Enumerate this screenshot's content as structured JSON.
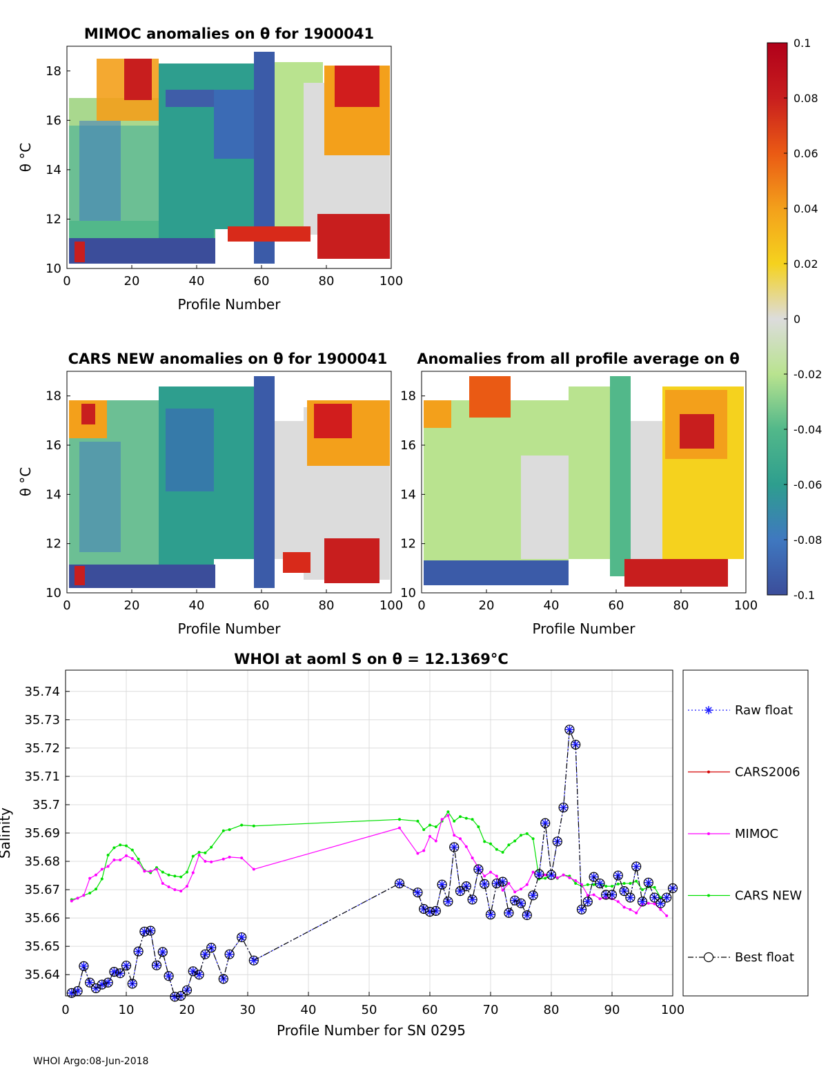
{
  "heatmaps": [
    {
      "id": "mimoc",
      "title": "MIMOC anomalies on θ  for 1900041",
      "xlabel": "Profile Number",
      "ylabel": "θ °C",
      "xlim": [
        0,
        100
      ],
      "ylim": [
        10,
        19
      ],
      "xticks": [
        0,
        20,
        40,
        60,
        80,
        100
      ],
      "yticks": [
        10,
        12,
        14,
        16,
        18
      ]
    },
    {
      "id": "cars",
      "title": "CARS NEW anomalies on θ for 1900041",
      "xlabel": "Profile Number",
      "ylabel": "θ °C",
      "xlim": [
        0,
        100
      ],
      "ylim": [
        10,
        19
      ],
      "xticks": [
        0,
        20,
        40,
        60,
        80,
        100
      ],
      "yticks": [
        10,
        12,
        14,
        16,
        18
      ]
    },
    {
      "id": "avg",
      "title": "Anomalies from all profile average on θ",
      "xlabel": "Profile Number",
      "ylabel": "",
      "xlim": [
        0,
        100
      ],
      "ylim": [
        10,
        19
      ],
      "xticks": [
        0,
        20,
        40,
        60,
        80,
        100
      ],
      "yticks": [
        10,
        12,
        14,
        16,
        18
      ]
    }
  ],
  "colorbar": {
    "ticks": [
      "0.1",
      "0.08",
      "0.06",
      "0.04",
      "0.02",
      "0",
      "-0.02",
      "-0.04",
      "-0.06",
      "-0.08",
      "-0.1"
    ],
    "range": [
      -0.1,
      0.1
    ],
    "colors": [
      "#3b4d9a",
      "#3f78c0",
      "#2e9e8e",
      "#52b88a",
      "#b9e38f",
      "#dcdcdc",
      "#f5d21e",
      "#f3a01b",
      "#ea5a14",
      "#c81e1e",
      "#b0001a"
    ]
  },
  "chart_data": {
    "type": "line",
    "title": "WHOI at aoml S on θ = 12.1369°C",
    "xlabel": "Profile Number for SN 0295",
    "ylabel": "Salinity",
    "xlim": [
      0,
      100
    ],
    "ylim": [
      35.6325,
      35.7475
    ],
    "xticks": [
      0,
      10,
      20,
      30,
      40,
      50,
      60,
      70,
      80,
      90,
      100
    ],
    "yticks": [
      35.64,
      35.65,
      35.66,
      35.67,
      35.68,
      35.69,
      35.7,
      35.71,
      35.72,
      35.73,
      35.74
    ],
    "ytick_labels": [
      "35.64",
      "35.65",
      "35.66",
      "35.67",
      "35.68",
      "35.69",
      "35.7",
      "35.71",
      "35.72",
      "35.73",
      "35.74"
    ],
    "series": [
      {
        "name": "Raw float",
        "color": "#1a1aff",
        "style": "dotted-star",
        "x": [
          1,
          2,
          3,
          4,
          5,
          6,
          7,
          8,
          9,
          10,
          11,
          12,
          13,
          14,
          15,
          16,
          17,
          18,
          19,
          20,
          21,
          22,
          23,
          24,
          26,
          27,
          29,
          31,
          55,
          58,
          59,
          60,
          61,
          62,
          63,
          64,
          65,
          66,
          67,
          68,
          69,
          70,
          71,
          72,
          73,
          74,
          75,
          76,
          77,
          78,
          79,
          80,
          81,
          82,
          83,
          84,
          85,
          86,
          87,
          88,
          89,
          90,
          91,
          92,
          93,
          94,
          95,
          96,
          97,
          98,
          99,
          100
        ],
        "y": [
          35.6335,
          35.6342,
          35.643,
          35.6372,
          35.6352,
          35.6365,
          35.6372,
          35.641,
          35.6405,
          35.6432,
          35.6368,
          35.6482,
          35.6552,
          35.6555,
          35.6433,
          35.648,
          35.6395,
          35.6322,
          35.6325,
          35.6345,
          35.6412,
          35.64,
          35.6472,
          35.6495,
          35.6385,
          35.6472,
          35.6532,
          35.645,
          35.6722,
          35.669,
          35.6632,
          35.6622,
          35.6625,
          35.6718,
          35.6658,
          35.685,
          35.6695,
          35.6712,
          35.6665,
          35.6772,
          35.672,
          35.6612,
          35.6722,
          35.6728,
          35.6618,
          35.6662,
          35.6652,
          35.661,
          35.668,
          35.6755,
          35.6935,
          35.6752,
          35.687,
          35.699,
          35.7265,
          35.7212,
          35.663,
          35.6658,
          35.6745,
          35.6722,
          35.6682,
          35.6682,
          35.675,
          35.6695,
          35.6672,
          35.6782,
          35.6658,
          35.6725,
          35.6672,
          35.6652,
          35.6672,
          35.6705
        ]
      },
      {
        "name": "CARS2006",
        "color": "#d40000",
        "style": "solid-dot",
        "x": [],
        "y": []
      },
      {
        "name": "MIMOC",
        "color": "#ff00ff",
        "style": "solid-dot",
        "x": [
          1,
          2,
          3,
          4,
          5,
          6,
          7,
          8,
          9,
          10,
          11,
          12,
          13,
          14,
          15,
          16,
          17,
          18,
          19,
          20,
          21,
          22,
          23,
          24,
          26,
          27,
          29,
          31,
          55,
          58,
          59,
          60,
          61,
          62,
          63,
          64,
          65,
          66,
          67,
          68,
          69,
          70,
          71,
          72,
          73,
          74,
          75,
          76,
          77,
          78,
          79,
          80,
          81,
          82,
          83,
          84,
          85,
          86,
          87,
          88,
          89,
          90,
          91,
          92,
          93,
          94,
          95,
          96,
          97,
          98,
          99
        ],
        "y": [
          35.666,
          35.667,
          35.668,
          35.674,
          35.6752,
          35.6772,
          35.6782,
          35.6805,
          35.6805,
          35.682,
          35.681,
          35.6795,
          35.6765,
          35.6765,
          35.6772,
          35.6722,
          35.671,
          35.67,
          35.6695,
          35.6712,
          35.676,
          35.6822,
          35.68,
          35.6798,
          35.6808,
          35.6815,
          35.6812,
          35.6772,
          35.6918,
          35.6828,
          35.6838,
          35.6888,
          35.6872,
          35.6948,
          35.6962,
          35.6892,
          35.688,
          35.6852,
          35.6812,
          35.6778,
          35.6748,
          35.6762,
          35.6748,
          35.6698,
          35.6722,
          35.6692,
          35.6702,
          35.6718,
          35.6762,
          35.6748,
          35.6752,
          35.6752,
          35.6742,
          35.6752,
          35.6742,
          35.6732,
          35.6718,
          35.668,
          35.6682,
          35.6668,
          35.6672,
          35.6668,
          35.6658,
          35.6638,
          35.663,
          35.6618,
          35.6648,
          35.6652,
          35.665,
          35.663,
          35.6608
        ]
      },
      {
        "name": "CARS NEW",
        "color": "#00e000",
        "style": "solid-dot",
        "x": [
          1,
          2,
          3,
          4,
          5,
          6,
          7,
          8,
          9,
          10,
          11,
          12,
          13,
          14,
          15,
          16,
          17,
          18,
          19,
          20,
          21,
          22,
          23,
          24,
          26,
          27,
          29,
          31,
          55,
          58,
          59,
          60,
          61,
          62,
          63,
          64,
          65,
          66,
          67,
          68,
          69,
          70,
          71,
          72,
          73,
          74,
          75,
          76,
          77,
          78,
          79,
          80,
          81,
          82,
          83,
          84,
          85,
          86,
          87,
          88,
          89,
          90,
          91,
          92,
          93,
          94,
          95,
          96,
          97,
          98,
          99
        ],
        "y": [
          35.6665,
          35.667,
          35.668,
          35.6688,
          35.6702,
          35.6738,
          35.6822,
          35.6848,
          35.6858,
          35.6855,
          35.684,
          35.6808,
          35.6768,
          35.676,
          35.6778,
          35.6762,
          35.6752,
          35.6748,
          35.6745,
          35.6762,
          35.6818,
          35.6832,
          35.683,
          35.685,
          35.6908,
          35.6912,
          35.6928,
          35.6925,
          35.6948,
          35.6942,
          35.6912,
          35.6928,
          35.6922,
          35.6942,
          35.6975,
          35.6942,
          35.6958,
          35.6952,
          35.6948,
          35.6922,
          35.687,
          35.6862,
          35.6842,
          35.6832,
          35.6858,
          35.6872,
          35.6892,
          35.6898,
          35.688,
          35.6738,
          35.674,
          35.6752,
          35.674,
          35.6752,
          35.6748,
          35.6722,
          35.6712,
          35.6718,
          35.6718,
          35.6722,
          35.6712,
          35.6712,
          35.672,
          35.6722,
          35.6722,
          35.673,
          35.67,
          35.671,
          35.6708,
          35.6672,
          35.6672
        ]
      },
      {
        "name": "Best float",
        "color": "#000000",
        "style": "dashdot-circle",
        "x": [
          1,
          2,
          3,
          4,
          5,
          6,
          7,
          8,
          9,
          10,
          11,
          12,
          13,
          14,
          15,
          16,
          17,
          18,
          19,
          20,
          21,
          22,
          23,
          24,
          26,
          27,
          29,
          31,
          55,
          58,
          59,
          60,
          61,
          62,
          63,
          64,
          65,
          66,
          67,
          68,
          69,
          70,
          71,
          72,
          73,
          74,
          75,
          76,
          77,
          78,
          79,
          80,
          81,
          82,
          83,
          84,
          85,
          86,
          87,
          88,
          89,
          90,
          91,
          92,
          93,
          94,
          95,
          96,
          97,
          98,
          99,
          100
        ],
        "y": [
          35.6335,
          35.6342,
          35.643,
          35.6372,
          35.6352,
          35.6365,
          35.6372,
          35.641,
          35.6405,
          35.6432,
          35.6368,
          35.6482,
          35.6552,
          35.6555,
          35.6433,
          35.648,
          35.6395,
          35.6322,
          35.6325,
          35.6345,
          35.6412,
          35.64,
          35.6472,
          35.6495,
          35.6385,
          35.6472,
          35.6532,
          35.645,
          35.6722,
          35.669,
          35.6632,
          35.6622,
          35.6625,
          35.6718,
          35.6658,
          35.685,
          35.6695,
          35.6712,
          35.6665,
          35.6772,
          35.672,
          35.6612,
          35.6722,
          35.6728,
          35.6618,
          35.6662,
          35.6652,
          35.661,
          35.668,
          35.6755,
          35.6935,
          35.6752,
          35.687,
          35.699,
          35.7265,
          35.7212,
          35.663,
          35.6658,
          35.6745,
          35.6722,
          35.6682,
          35.6682,
          35.675,
          35.6695,
          35.6672,
          35.6782,
          35.6658,
          35.6725,
          35.6672,
          35.6652,
          35.6672,
          35.6705
        ]
      }
    ]
  },
  "footer": "WHOI Argo:08-Jun-2018"
}
